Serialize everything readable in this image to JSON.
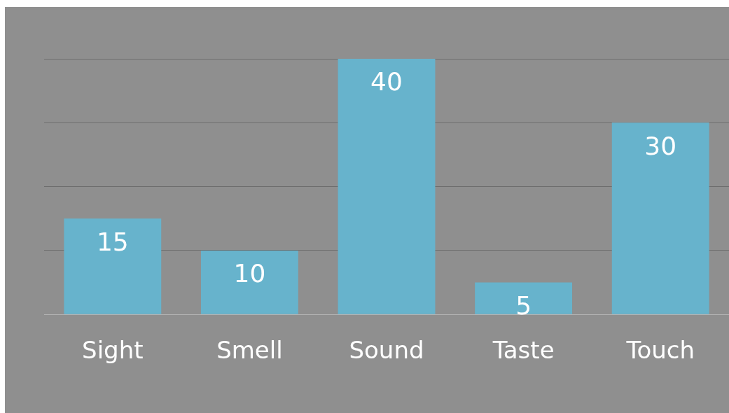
{
  "chart_data": {
    "type": "bar",
    "categories": [
      "Sight",
      "Smell",
      "Sound",
      "Taste",
      "Touch"
    ],
    "values": [
      15,
      10,
      40,
      5,
      30
    ],
    "color": "#67b3cc",
    "ylim": [
      0,
      40
    ],
    "yticks": [
      {
        "value": 0,
        "label": null
      },
      {
        "value": 10,
        "label": null
      },
      {
        "value": 20,
        "label": null
      },
      {
        "value": 30,
        "label": null
      },
      {
        "value": 40,
        "label": null
      }
    ],
    "grid": "y",
    "tick_labels": "x",
    "data_labels": true,
    "legend": false
  }
}
